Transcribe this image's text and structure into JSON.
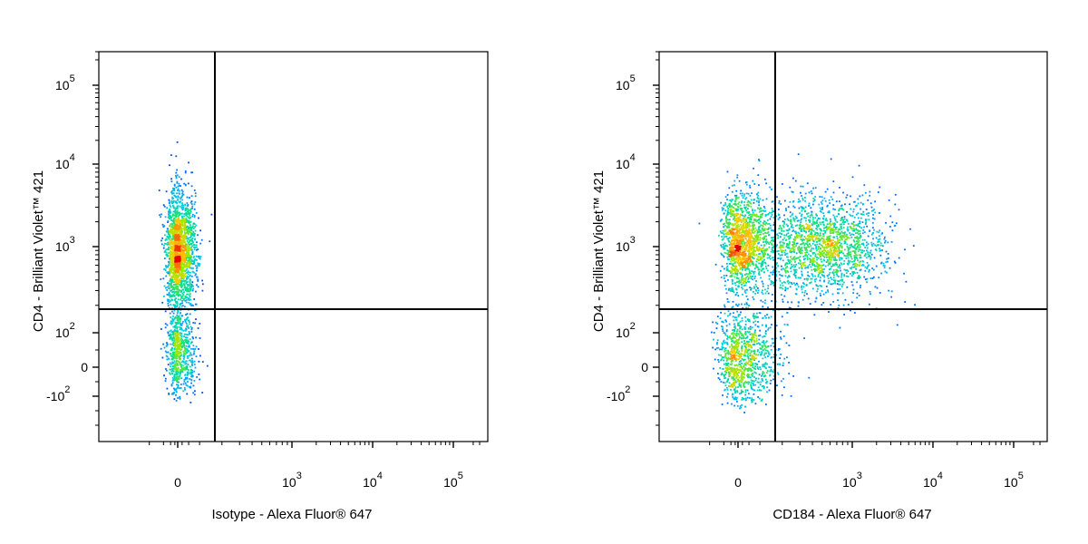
{
  "chart_data": [
    {
      "type": "scatter",
      "subtype": "flow-cytometry-density",
      "xlabel": "Isotype - Alexa Fluor® 647",
      "ylabel": "CD4 - Brilliant Violet™ 421",
      "x_scale": "biexponential",
      "y_scale": "biexponential",
      "x_ticks": [
        "0",
        "10^3",
        "10^4",
        "10^5"
      ],
      "y_ticks": [
        "10^5",
        "10^4",
        "10^3",
        "10^2",
        "0",
        "-10^2"
      ],
      "xlim": [
        -300,
        250000
      ],
      "ylim": [
        -350,
        250000
      ],
      "gate": {
        "x": 170,
        "y": 180
      },
      "populations": [
        {
          "name": "",
          "x_center": 0,
          "y_center": 900,
          "x_spread": 40,
          "y_spread": 0.35,
          "weight": 0.75
        },
        {
          "name": "",
          "x_center": 0,
          "y_center": 40,
          "x_spread": 40,
          "y_spread": 60,
          "weight": 0.25
        }
      ],
      "density_colors": [
        "#0000cc",
        "#00aaff",
        "#00e08a",
        "#d8f000",
        "#ffa500",
        "#e00000"
      ]
    },
    {
      "type": "scatter",
      "subtype": "flow-cytometry-density",
      "xlabel": "CD184 - Alexa Fluor® 647",
      "ylabel": "CD4 - Brilliant Violet™ 421",
      "x_scale": "biexponential",
      "y_scale": "biexponential",
      "x_ticks": [
        "0",
        "10^3",
        "10^4",
        "10^5"
      ],
      "y_ticks": [
        "10^5",
        "10^4",
        "10^3",
        "10^2",
        "0",
        "-10^2"
      ],
      "xlim": [
        -300,
        250000
      ],
      "ylim": [
        -350,
        250000
      ],
      "gate": {
        "x": 170,
        "y": 180
      },
      "populations": [
        {
          "name": "",
          "x_center": 10,
          "y_center": 1150,
          "x_spread": 60,
          "y_spread": 0.3,
          "weight": 0.3
        },
        {
          "name": "",
          "x_center": 450,
          "y_center": 1000,
          "x_spread": 0.35,
          "y_spread": 0.3,
          "weight": 0.45
        },
        {
          "name": "",
          "x_center": 20,
          "y_center": 30,
          "x_spread": 80,
          "y_spread": 70,
          "weight": 0.25
        }
      ],
      "density_colors": [
        "#0000cc",
        "#00aaff",
        "#00e08a",
        "#d8f000",
        "#ffa500",
        "#e00000"
      ]
    }
  ]
}
